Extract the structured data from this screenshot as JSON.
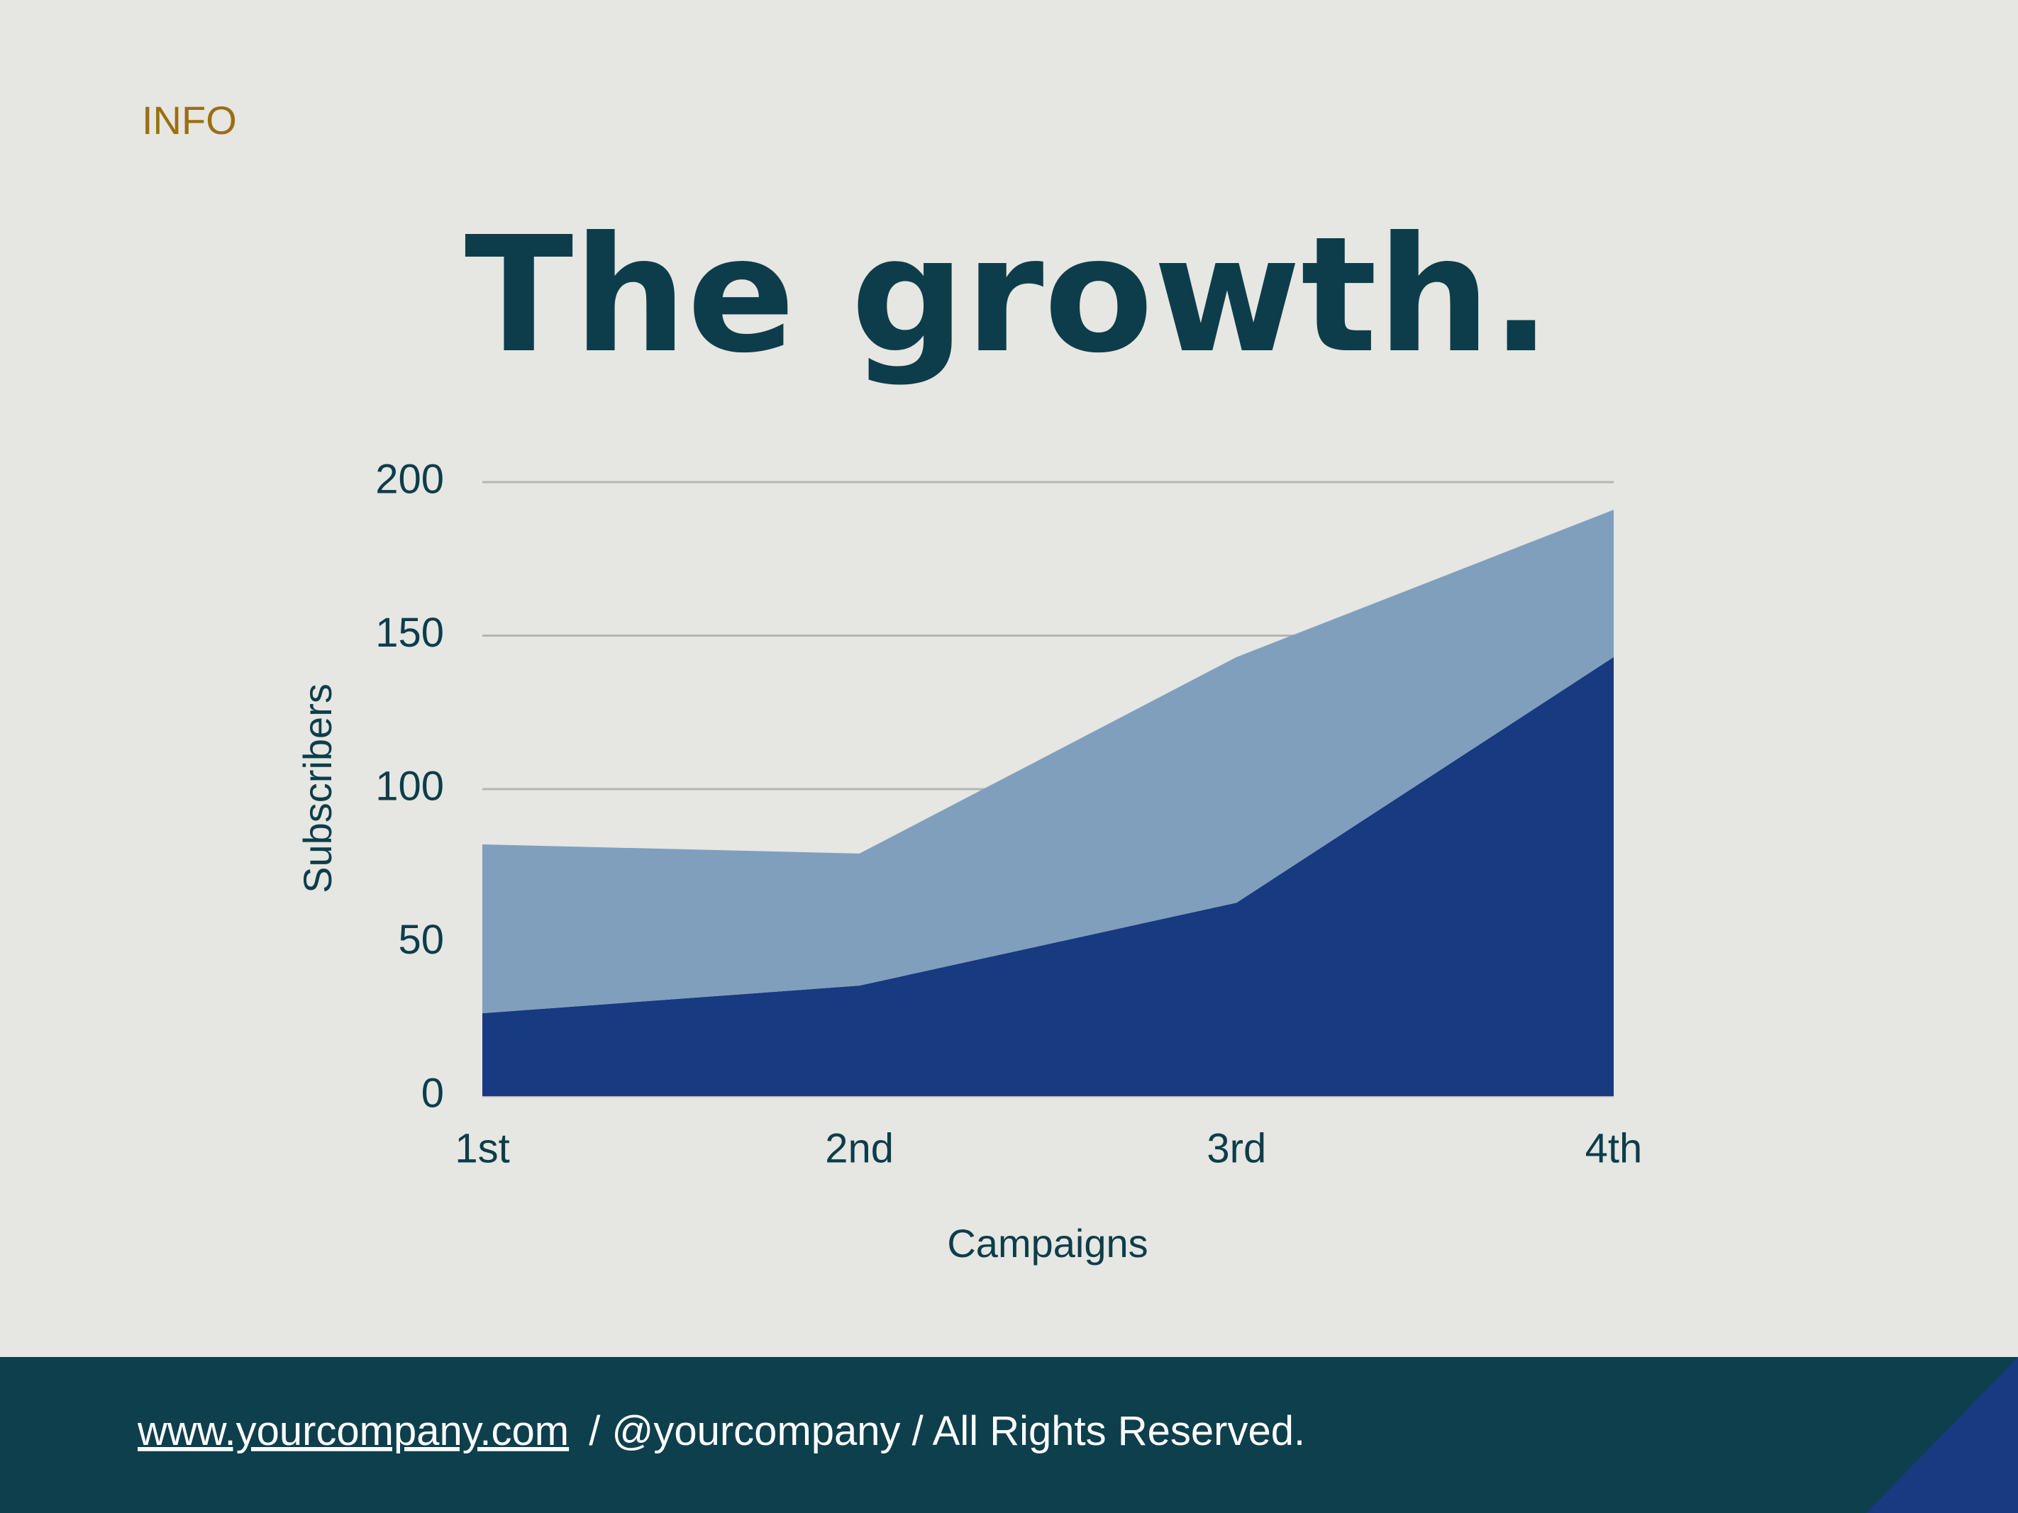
{
  "header": {
    "label": "INFO"
  },
  "chart_data": {
    "type": "area",
    "stacked": true,
    "title": "The growth.",
    "x_label": "Campaigns",
    "y_label": "Subscribers",
    "categories": [
      "1st",
      "2nd",
      "3rd",
      "4th"
    ],
    "series": [
      {
        "color": "#173a80",
        "values": [
          27,
          36,
          63,
          143
        ]
      },
      {
        "color": "#7f9fbd",
        "values": [
          55,
          43,
          80,
          48
        ]
      }
    ],
    "ylim": [
      0,
      200
    ],
    "yticks": [
      0,
      50,
      100,
      150,
      200
    ],
    "grid": true
  },
  "footer": {
    "link": "www.yourcompany.com",
    "text": "/ @yourcompany / All Rights Reserved."
  }
}
